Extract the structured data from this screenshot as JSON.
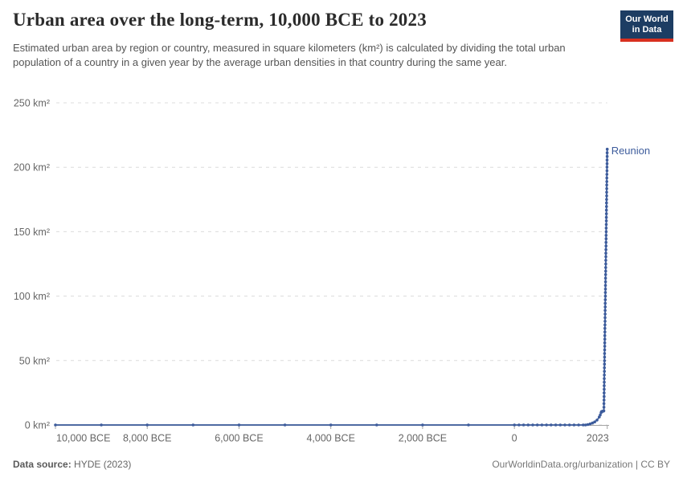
{
  "header": {
    "title": "Urban area over the long-term, 10,000 BCE to 2023",
    "subtitle": "Estimated urban area by region or country, measured in square kilometers (km²) is calculated by dividing the total urban population of a country in a given year by the average urban densities in that country during the same year."
  },
  "logo": {
    "line1": "Our World",
    "line2": "in Data"
  },
  "footer": {
    "source_label": "Data source:",
    "source_value": " HYDE (2023)",
    "credit": "OurWorldinData.org/urbanization | CC BY"
  },
  "colors": {
    "line": "#3d5c9c",
    "grid": "#dcdcdc",
    "axis": "#a3a3a3",
    "tick_text": "#666666",
    "title_text": "#2b2b2b",
    "subtitle_text": "#555555",
    "logo_bg": "#1d3d63",
    "logo_bar": "#d8301f"
  },
  "chart_data": {
    "type": "line",
    "title": "Urban area over the long-term, 10,000 BCE to 2023",
    "entity_label": "Reunion",
    "xlabel": "",
    "ylabel": "",
    "xlim": [
      -10000,
      2023
    ],
    "ylim": [
      0,
      250
    ],
    "grid": "dashed-horizontal",
    "legend_position": "end-of-line-label",
    "y_ticks": [
      {
        "value": 0,
        "label": "0 km²"
      },
      {
        "value": 50,
        "label": "50 km²"
      },
      {
        "value": 100,
        "label": "100 km²"
      },
      {
        "value": 150,
        "label": "150 km²"
      },
      {
        "value": 200,
        "label": "200 km²"
      },
      {
        "value": 250,
        "label": "250 km²"
      }
    ],
    "x_ticks": [
      {
        "value": -10000,
        "label": "10,000 BCE",
        "align": "start"
      },
      {
        "value": -8000,
        "label": "8,000 BCE",
        "align": "middle"
      },
      {
        "value": -6000,
        "label": "6,000 BCE",
        "align": "middle"
      },
      {
        "value": -4000,
        "label": "4,000 BCE",
        "align": "middle"
      },
      {
        "value": -2000,
        "label": "2,000 BCE",
        "align": "middle"
      },
      {
        "value": 0,
        "label": "0",
        "align": "middle"
      },
      {
        "value": 2023,
        "label": "2023",
        "align": "end"
      }
    ],
    "series": [
      {
        "name": "Reunion",
        "color": "#3d5c9c",
        "points": [
          [
            -10000,
            0
          ],
          [
            -9000,
            0
          ],
          [
            -8000,
            0
          ],
          [
            -7000,
            0
          ],
          [
            -6000,
            0
          ],
          [
            -5000,
            0
          ],
          [
            -4000,
            0
          ],
          [
            -3000,
            0
          ],
          [
            -2000,
            0
          ],
          [
            -1000,
            0
          ],
          [
            0,
            0
          ],
          [
            100,
            0
          ],
          [
            200,
            0
          ],
          [
            300,
            0
          ],
          [
            400,
            0
          ],
          [
            500,
            0
          ],
          [
            600,
            0
          ],
          [
            700,
            0
          ],
          [
            800,
            0
          ],
          [
            900,
            0
          ],
          [
            1000,
            0
          ],
          [
            1100,
            0
          ],
          [
            1200,
            0
          ],
          [
            1300,
            0
          ],
          [
            1400,
            0
          ],
          [
            1500,
            0
          ],
          [
            1550,
            0
          ],
          [
            1600,
            0.3
          ],
          [
            1650,
            0.8
          ],
          [
            1700,
            1.5
          ],
          [
            1750,
            2.4
          ],
          [
            1800,
            3.8
          ],
          [
            1850,
            6.2
          ],
          [
            1870,
            7.8
          ],
          [
            1890,
            9.6
          ],
          [
            1900,
            10.4
          ],
          [
            1910,
            10.5
          ],
          [
            1920,
            10.6
          ],
          [
            1930,
            10.7
          ],
          [
            1940,
            10.8
          ],
          [
            1950,
            11
          ],
          [
            1951,
            13.8
          ],
          [
            1952,
            16.6
          ],
          [
            1953,
            19.3
          ],
          [
            1954,
            22.1
          ],
          [
            1955,
            24.9
          ],
          [
            1956,
            27.7
          ],
          [
            1957,
            30.5
          ],
          [
            1958,
            33.2
          ],
          [
            1959,
            36.0
          ],
          [
            1960,
            38.8
          ],
          [
            1961,
            41.6
          ],
          [
            1962,
            44.4
          ],
          [
            1963,
            47.2
          ],
          [
            1964,
            49.9
          ],
          [
            1965,
            52.7
          ],
          [
            1966,
            55.5
          ],
          [
            1967,
            58.3
          ],
          [
            1968,
            61.1
          ],
          [
            1969,
            63.8
          ],
          [
            1970,
            66.6
          ],
          [
            1971,
            69.4
          ],
          [
            1972,
            72.2
          ],
          [
            1973,
            75.0
          ],
          [
            1974,
            77.7
          ],
          [
            1975,
            80.5
          ],
          [
            1976,
            83.3
          ],
          [
            1977,
            86.1
          ],
          [
            1978,
            88.9
          ],
          [
            1979,
            91.6
          ],
          [
            1980,
            94.4
          ],
          [
            1981,
            97.2
          ],
          [
            1982,
            100.0
          ],
          [
            1983,
            102.8
          ],
          [
            1984,
            105.5
          ],
          [
            1985,
            108.3
          ],
          [
            1986,
            111.1
          ],
          [
            1987,
            113.9
          ],
          [
            1988,
            116.7
          ],
          [
            1989,
            119.4
          ],
          [
            1990,
            122.2
          ],
          [
            1991,
            125.0
          ],
          [
            1992,
            127.8
          ],
          [
            1993,
            130.6
          ],
          [
            1994,
            133.3
          ],
          [
            1995,
            136.1
          ],
          [
            1996,
            138.9
          ],
          [
            1997,
            141.7
          ],
          [
            1998,
            144.5
          ],
          [
            1999,
            147.2
          ],
          [
            2000,
            150.0
          ],
          [
            2001,
            152.8
          ],
          [
            2002,
            155.6
          ],
          [
            2003,
            158.4
          ],
          [
            2004,
            161.1
          ],
          [
            2005,
            163.9
          ],
          [
            2006,
            166.7
          ],
          [
            2007,
            169.5
          ],
          [
            2008,
            172.3
          ],
          [
            2009,
            175.0
          ],
          [
            2010,
            177.8
          ],
          [
            2011,
            180.6
          ],
          [
            2012,
            183.4
          ],
          [
            2013,
            186.2
          ],
          [
            2014,
            188.9
          ],
          [
            2015,
            191.7
          ],
          [
            2016,
            194.5
          ],
          [
            2017,
            197.3
          ],
          [
            2018,
            200.1
          ],
          [
            2019,
            202.8
          ],
          [
            2020,
            205.6
          ],
          [
            2021,
            208.4
          ],
          [
            2022,
            211.2
          ],
          [
            2023,
            214.0
          ]
        ]
      }
    ]
  }
}
